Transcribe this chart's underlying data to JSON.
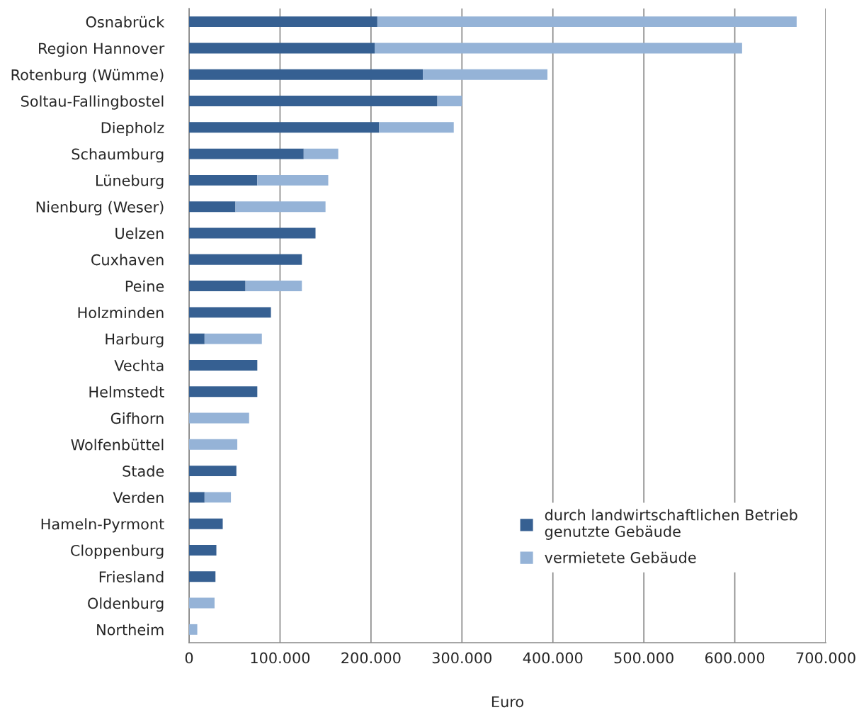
{
  "chart_data": {
    "type": "bar",
    "orientation": "horizontal",
    "stacked": true,
    "xlabel": "Euro",
    "categories": [
      "Osnabrück",
      "Region Hannover",
      "Rotenburg (Wümme)",
      "Soltau-Fallingbostel",
      "Diepholz",
      "Schaumburg",
      "Lüneburg",
      "Nienburg (Weser)",
      "Uelzen",
      "Cuxhaven",
      "Peine",
      "Holzminden",
      "Harburg",
      "Vechta",
      "Helmstedt",
      "Gifhorn",
      "Wolfenbüttel",
      "Stade",
      "Verden",
      "Hameln-Pyrmont",
      "Cloppenburg",
      "Friesland",
      "Oldenburg",
      "Northeim"
    ],
    "series": [
      {
        "name": "durch landwirtschaftlichen Betrieb\ngenutzte Gebäude",
        "color": "#366092",
        "values": [
          207000,
          204000,
          257000,
          273000,
          209000,
          126000,
          75000,
          51000,
          139000,
          124000,
          62000,
          90000,
          17000,
          75000,
          75000,
          null,
          null,
          52000,
          17000,
          37000,
          30000,
          29000,
          null,
          null
        ]
      },
      {
        "name": "vermietete Gebäude",
        "color": "#95b3d7",
        "values": [
          461000,
          404000,
          137000,
          27000,
          82000,
          38000,
          78000,
          99000,
          null,
          null,
          62000,
          null,
          63000,
          null,
          null,
          66000,
          53000,
          null,
          29000,
          null,
          null,
          null,
          28000,
          9000
        ]
      }
    ],
    "xlim": [
      0,
      700000
    ],
    "xticks": [
      0,
      {
        "value": 100000,
        "label": "100.000"
      },
      {
        "value": 200000,
        "label": "200.000"
      },
      {
        "value": 300000,
        "label": "300.000"
      },
      {
        "value": 400000,
        "label": "400.000"
      },
      {
        "value": 500000,
        "label": "500.000"
      },
      {
        "value": 600000,
        "label": "600.000"
      },
      {
        "value": 700000,
        "label": "700.000"
      }
    ],
    "grid": "x",
    "legend": "bottom right"
  }
}
